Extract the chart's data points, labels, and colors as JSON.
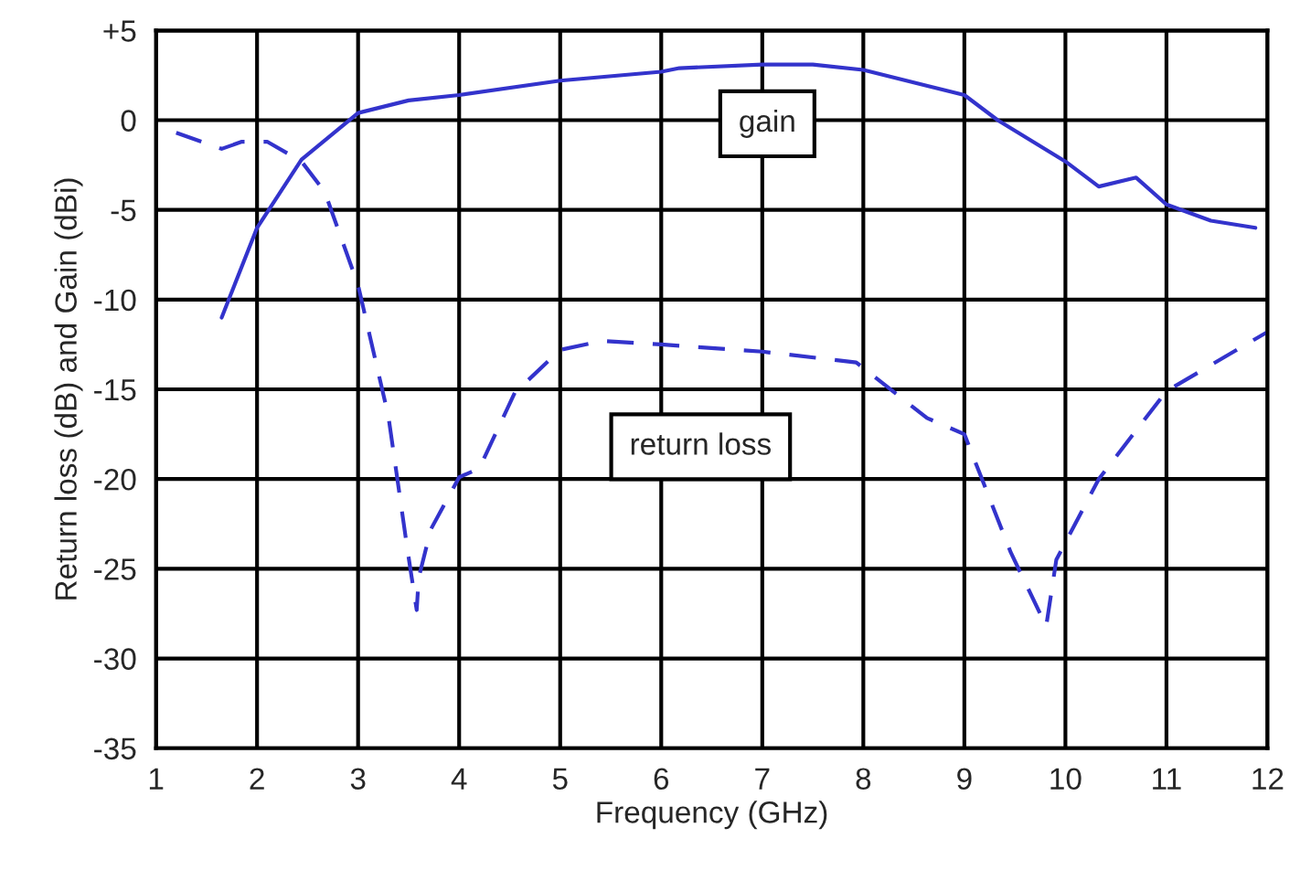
{
  "chart_data": {
    "type": "line",
    "xlabel": "Frequency (GHz)",
    "ylabel": "Return loss (dB) and Gain (dBi)",
    "xlim": [
      1,
      12
    ],
    "xticks": [
      1,
      2,
      3,
      4,
      5,
      6,
      7,
      8,
      9,
      10,
      11,
      12
    ],
    "ylim": [
      -35,
      5
    ],
    "yticks": [
      {
        "value": 5,
        "label": "+5"
      },
      0,
      -5,
      -10,
      -15,
      -20,
      -25,
      -30,
      -35
    ],
    "grid": true,
    "legend": false,
    "marker": "none",
    "series": [
      {
        "name": "gain",
        "color": "#3333cc",
        "line_style": "solid",
        "x": [
          1.65,
          2.0,
          2.44,
          3.0,
          3.5,
          4.0,
          5.0,
          6.0,
          6.18,
          7.0,
          7.5,
          8.0,
          9.0,
          9.33,
          10.0,
          10.33,
          10.7,
          11.0,
          11.44,
          11.88
        ],
        "values": [
          -11,
          -6.0,
          -2.2,
          0.4,
          1.1,
          1.4,
          2.2,
          2.7,
          2.9,
          3.1,
          3.1,
          2.8,
          1.4,
          0.0,
          -2.3,
          -3.7,
          -3.2,
          -4.7,
          -5.6,
          -6.0
        ]
      },
      {
        "name": "return loss",
        "color": "#3333cc",
        "line_style": "dashed",
        "x": [
          1.2,
          1.65,
          1.85,
          2.1,
          2.44,
          2.67,
          3.0,
          3.3,
          3.49,
          3.58,
          3.6,
          3.72,
          4.0,
          4.2,
          4.55,
          5.0,
          5.42,
          6.0,
          7.0,
          7.93,
          8.63,
          9.0,
          9.46,
          9.81,
          9.91,
          10.33,
          11.0,
          12.0
        ],
        "values": [
          -0.7,
          -1.6,
          -1.2,
          -1.2,
          -2.3,
          -4.0,
          -9.2,
          -16.5,
          -24.0,
          -27.3,
          -25.5,
          -22.8,
          -19.9,
          -19.4,
          -15.2,
          -12.8,
          -12.3,
          -12.5,
          -12.9,
          -13.5,
          -16.6,
          -17.5,
          -24.1,
          -28.2,
          -24.5,
          -20.0,
          -15.1,
          -11.8
        ]
      }
    ]
  }
}
